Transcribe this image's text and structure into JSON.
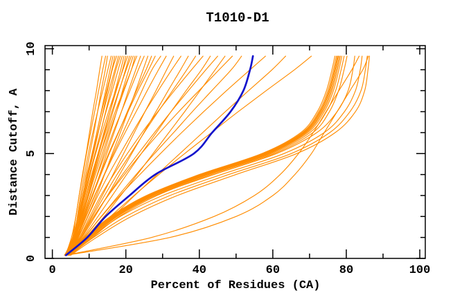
{
  "chart_data": {
    "type": "line",
    "title": "T1010-D1",
    "xlabel": "Percent of Residues (CA)",
    "ylabel": "Distance Cutoff, A",
    "xlim": [
      -2,
      101.5
    ],
    "ylim": [
      0,
      10.15
    ],
    "x_ticks_major": [
      0,
      20,
      40,
      60,
      80,
      100
    ],
    "x_ticks_minor": [
      10,
      30,
      50,
      70,
      90
    ],
    "y_ticks_major": [
      0,
      5,
      10
    ],
    "y_ticks_minor": [
      1,
      2,
      3,
      4,
      6,
      7,
      8,
      9
    ],
    "grid": false,
    "legend": "none",
    "colors": {
      "prediction": "#ff8c00",
      "highlight": "#1414cc",
      "axis": "#000000",
      "background": "#ffffff"
    },
    "y_values": [
      0.15,
      1,
      2,
      3,
      4,
      5,
      6,
      7,
      8,
      9,
      9.65
    ],
    "series": [
      {
        "name": "prediction-01",
        "color": "prediction",
        "x_values": [
          3.6,
          5.2,
          6.4,
          7.3,
          8.2,
          9.2,
          10.1,
          11.0,
          12.0,
          12.9,
          13.5
        ]
      },
      {
        "name": "prediction-02",
        "color": "prediction",
        "x_values": [
          3.9,
          5.5,
          6.4,
          7.3,
          8.3,
          9.3,
          10.4,
          11.5,
          12.6,
          13.7,
          14.5
        ]
      },
      {
        "name": "prediction-03",
        "color": "prediction",
        "x_values": [
          3.4,
          5.5,
          6.9,
          8.0,
          9.1,
          10.2,
          11.3,
          12.3,
          13.3,
          14.4,
          15.0
        ]
      },
      {
        "name": "prediction-04",
        "color": "prediction",
        "x_values": [
          4.1,
          5.9,
          6.8,
          7.7,
          8.7,
          9.8,
          11.0,
          12.3,
          13.7,
          15.1,
          16.0
        ]
      },
      {
        "name": "prediction-05",
        "color": "prediction",
        "x_values": [
          3.7,
          5.8,
          7.2,
          8.4,
          9.4,
          10.9,
          12.1,
          13.3,
          14.5,
          15.7,
          16.5
        ]
      },
      {
        "name": "prediction-06",
        "color": "prediction",
        "x_values": [
          4.0,
          6.0,
          7.1,
          8.3,
          9.5,
          10.8,
          12.1,
          13.4,
          14.8,
          16.2,
          17.0
        ]
      },
      {
        "name": "prediction-07",
        "color": "prediction",
        "x_values": [
          3.5,
          5.7,
          7.2,
          8.5,
          9.8,
          11.2,
          12.5,
          13.8,
          15.0,
          16.3,
          17.5
        ]
      },
      {
        "name": "prediction-08",
        "color": "prediction",
        "x_values": [
          4.3,
          6.2,
          7.4,
          8.5,
          9.7,
          11.0,
          12.4,
          13.9,
          15.4,
          17.0,
          18.0
        ]
      },
      {
        "name": "prediction-09",
        "color": "prediction",
        "x_values": [
          3.8,
          6.0,
          7.5,
          8.9,
          10.3,
          11.7,
          13.1,
          14.5,
          15.9,
          17.3,
          18.5
        ]
      },
      {
        "name": "prediction-10",
        "color": "prediction",
        "x_values": [
          4.2,
          6.1,
          7.5,
          8.7,
          10.1,
          11.6,
          13.1,
          14.6,
          16.3,
          17.9,
          19.0
        ]
      },
      {
        "name": "prediction-11",
        "color": "prediction",
        "x_values": [
          3.3,
          6.0,
          7.9,
          9.6,
          11.1,
          12.7,
          14.2,
          15.7,
          17.1,
          18.6,
          19.5
        ]
      },
      {
        "name": "prediction-12",
        "color": "prediction",
        "x_values": [
          3.9,
          6.0,
          7.7,
          9.2,
          10.7,
          12.4,
          14.0,
          15.7,
          17.4,
          19.1,
          20.0
        ]
      },
      {
        "name": "prediction-13",
        "color": "prediction",
        "x_values": [
          4.5,
          6.4,
          7.6,
          8.8,
          10.2,
          11.8,
          13.5,
          15.3,
          17.2,
          19.2,
          20.5
        ]
      },
      {
        "name": "prediction-14",
        "color": "prediction",
        "x_values": [
          3.6,
          6.1,
          8.0,
          9.7,
          11.4,
          13.1,
          14.8,
          16.5,
          18.2,
          19.9,
          21.0
        ]
      },
      {
        "name": "prediction-15",
        "color": "prediction",
        "x_values": [
          4.2,
          6.4,
          7.8,
          9.3,
          10.9,
          12.6,
          14.4,
          16.2,
          18.1,
          20.1,
          21.5
        ]
      },
      {
        "name": "prediction-16",
        "color": "prediction",
        "x_values": [
          3.5,
          6.4,
          8.6,
          10.4,
          12.2,
          14.0,
          15.8,
          17.5,
          19.1,
          20.8,
          22.0
        ]
      },
      {
        "name": "prediction-17",
        "color": "prediction",
        "x_values": [
          3.9,
          6.3,
          8.2,
          9.9,
          11.7,
          13.6,
          15.5,
          17.5,
          19.5,
          21.5,
          22.5
        ]
      },
      {
        "name": "prediction-18",
        "color": "prediction",
        "x_values": [
          4.6,
          6.8,
          8.2,
          9.7,
          11.3,
          13.1,
          15.1,
          17.1,
          19.3,
          21.5,
          23.0
        ]
      },
      {
        "name": "prediction-19",
        "color": "prediction",
        "x_values": [
          3.8,
          6.8,
          8.9,
          10.9,
          12.9,
          14.8,
          16.8,
          18.8,
          20.7,
          22.7,
          24.0
        ]
      },
      {
        "name": "prediction-20",
        "color": "prediction",
        "x_values": [
          4.1,
          6.6,
          8.4,
          10.3,
          12.3,
          14.4,
          16.5,
          18.8,
          21.1,
          23.4,
          25.0
        ]
      },
      {
        "name": "prediction-21",
        "color": "prediction",
        "x_values": [
          3.3,
          6.9,
          9.6,
          12.0,
          14.2,
          16.3,
          18.5,
          20.6,
          22.7,
          24.7,
          26.0
        ]
      },
      {
        "name": "prediction-22",
        "color": "prediction",
        "x_values": [
          4.0,
          6.7,
          8.8,
          11.0,
          13.2,
          15.5,
          18.0,
          20.4,
          22.9,
          25.5,
          27.0
        ]
      },
      {
        "name": "prediction-23",
        "color": "prediction",
        "x_values": [
          4.4,
          6.9,
          8.8,
          10.8,
          13.0,
          15.3,
          17.9,
          20.6,
          23.3,
          26.2,
          28.0
        ]
      },
      {
        "name": "prediction-24",
        "color": "prediction",
        "x_values": [
          3.6,
          6.7,
          9.2,
          11.6,
          14.1,
          16.6,
          19.2,
          21.8,
          24.4,
          27.1,
          29.5
        ]
      },
      {
        "name": "prediction-25",
        "color": "prediction",
        "x_values": [
          3.9,
          6.7,
          9.1,
          11.5,
          14.2,
          16.9,
          19.8,
          22.8,
          25.8,
          28.9,
          31.0
        ]
      },
      {
        "name": "prediction-26",
        "color": "prediction",
        "x_values": [
          3.7,
          7.4,
          10.6,
          13.6,
          16.5,
          19.4,
          22.3,
          25.2,
          28.2,
          31.1,
          33.0
        ]
      },
      {
        "name": "prediction-27",
        "color": "prediction",
        "x_values": [
          4.2,
          7.1,
          9.7,
          12.4,
          15.3,
          18.5,
          21.8,
          25.2,
          28.8,
          32.5,
          35.0
        ]
      },
      {
        "name": "prediction-28",
        "color": "prediction",
        "x_values": [
          3.9,
          8.0,
          11.6,
          15.0,
          18.3,
          21.6,
          24.9,
          28.2,
          31.5,
          34.9,
          37.0
        ]
      },
      {
        "name": "prediction-29",
        "color": "prediction",
        "x_values": [
          4.1,
          7.7,
          10.9,
          14.2,
          17.6,
          21.3,
          25.0,
          28.8,
          32.7,
          36.6,
          39.0
        ]
      },
      {
        "name": "prediction-30",
        "color": "prediction",
        "x_values": [
          4.4,
          7.4,
          10.2,
          13.2,
          16.7,
          20.4,
          24.4,
          28.7,
          33.2,
          37.9,
          41.0
        ]
      },
      {
        "name": "prediction-31",
        "color": "prediction",
        "x_values": [
          3.8,
          8.3,
          12.4,
          16.3,
          20.2,
          24.2,
          28.3,
          32.3,
          36.4,
          40.6,
          43.0
        ]
      },
      {
        "name": "prediction-32",
        "color": "prediction",
        "x_values": [
          4.0,
          7.7,
          11.3,
          15.1,
          19.1,
          23.4,
          27.8,
          32.3,
          37.0,
          41.8,
          45.0
        ]
      },
      {
        "name": "prediction-33",
        "color": "prediction",
        "x_values": [
          3.5,
          9.0,
          14.1,
          18.6,
          23.1,
          27.4,
          31.7,
          36.0,
          40.2,
          44.3,
          47.0
        ]
      },
      {
        "name": "prediction-34",
        "color": "prediction",
        "x_values": [
          4.3,
          7.8,
          11.3,
          15.2,
          19.6,
          24.2,
          29.2,
          34.4,
          39.9,
          45.4,
          49.0
        ]
      },
      {
        "name": "prediction-35",
        "color": "prediction",
        "x_values": [
          3.9,
          8.6,
          13.3,
          18.0,
          22.8,
          27.8,
          33.0,
          38.1,
          43.4,
          48.7,
          51.5
        ]
      },
      {
        "name": "prediction-36",
        "color": "prediction",
        "x_values": [
          4.2,
          8.7,
          13.4,
          18.4,
          23.8,
          29.4,
          35.2,
          41.2,
          47.4,
          53.8,
          58.0
        ]
      },
      {
        "name": "prediction-37",
        "color": "prediction",
        "x_values": [
          3.8,
          9.8,
          16.5,
          22.4,
          28.5,
          34.7,
          40.9,
          47.1,
          53.4,
          59.8,
          63.5
        ]
      },
      {
        "name": "prediction-38",
        "color": "prediction",
        "x_values": [
          4.0,
          9.2,
          15.8,
          22.2,
          29.0,
          36.0,
          43.3,
          50.6,
          58.2,
          65.9,
          70.5
        ]
      },
      {
        "name": "prediction-39",
        "color": "prediction",
        "x_values": [
          3.4,
          8.9,
          15.8,
          25.6,
          40.0,
          57.0,
          67.6,
          72.1,
          74.6,
          76.1,
          76.9
        ]
      },
      {
        "name": "prediction-40",
        "color": "prediction",
        "x_values": [
          3.6,
          9.1,
          16.1,
          26.0,
          40.4,
          57.4,
          68.0,
          72.5,
          75.0,
          76.5,
          77.3
        ]
      },
      {
        "name": "prediction-41",
        "color": "prediction",
        "x_values": [
          3.8,
          9.3,
          16.3,
          26.3,
          40.7,
          57.7,
          68.3,
          72.8,
          75.3,
          76.8,
          77.6
        ]
      },
      {
        "name": "prediction-42",
        "color": "prediction",
        "x_values": [
          4.0,
          9.5,
          16.5,
          26.5,
          41.0,
          58.0,
          68.5,
          73.0,
          75.5,
          77.0,
          77.8
        ]
      },
      {
        "name": "prediction-43",
        "color": "prediction",
        "x_values": [
          4.1,
          9.7,
          16.8,
          26.8,
          41.3,
          58.3,
          68.8,
          73.3,
          75.8,
          77.3,
          78.1
        ]
      },
      {
        "name": "prediction-44",
        "color": "prediction",
        "x_values": [
          4.3,
          9.9,
          17.0,
          27.1,
          41.6,
          58.6,
          69.1,
          73.6,
          76.1,
          77.6,
          78.4
        ]
      },
      {
        "name": "prediction-45",
        "color": "prediction",
        "x_values": [
          4.4,
          10.2,
          17.3,
          27.4,
          42.0,
          59.0,
          69.5,
          74.0,
          76.5,
          78.0,
          78.8
        ]
      },
      {
        "name": "prediction-46",
        "color": "prediction",
        "x_values": [
          4.6,
          10.5,
          17.7,
          27.9,
          42.5,
          59.6,
          70.1,
          74.6,
          77.1,
          78.6,
          79.4
        ]
      },
      {
        "name": "prediction-47",
        "color": "prediction",
        "x_values": [
          4.8,
          10.9,
          18.2,
          28.5,
          43.2,
          60.3,
          70.9,
          75.4,
          77.9,
          79.4,
          80.2
        ]
      },
      {
        "name": "prediction-48",
        "color": "prediction",
        "x_values": [
          4.2,
          10.0,
          17.5,
          28.0,
          44.0,
          61.0,
          72.0,
          77.5,
          80.5,
          81.8,
          82.3
        ]
      },
      {
        "name": "prediction-49",
        "color": "prediction",
        "x_values": [
          4.5,
          10.5,
          18.5,
          30.0,
          46.0,
          63.0,
          74.0,
          79.5,
          82.5,
          83.8,
          84.3
        ]
      },
      {
        "name": "prediction-50",
        "color": "prediction",
        "x_values": [
          4.8,
          11.2,
          20.0,
          32.0,
          48.0,
          65.0,
          75.5,
          81.0,
          84.0,
          85.2,
          85.7
        ]
      },
      {
        "name": "prediction-51",
        "color": "prediction",
        "x_values": [
          5.0,
          12.0,
          21.5,
          34.0,
          50.0,
          66.5,
          77.0,
          82.5,
          85.0,
          85.9,
          86.3
        ]
      },
      {
        "name": "prediction-52",
        "color": "prediction",
        "x_values": [
          3.8,
          32.0,
          50.0,
          60.0,
          66.0,
          70.5,
          74.0,
          77.5,
          81.0,
          84.5,
          86.0
        ]
      },
      {
        "name": "prediction-53",
        "color": "prediction",
        "x_values": [
          3.5,
          27.0,
          44.0,
          55.0,
          62.0,
          67.0,
          71.0,
          74.5,
          78.0,
          81.5,
          83.5
        ]
      },
      {
        "name": "highlighted-model",
        "color": "highlight",
        "x_values": [
          3.7,
          9.5,
          14.5,
          21.0,
          28.0,
          38.5,
          43.5,
          48.5,
          52.0,
          53.8,
          54.6
        ]
      }
    ]
  }
}
